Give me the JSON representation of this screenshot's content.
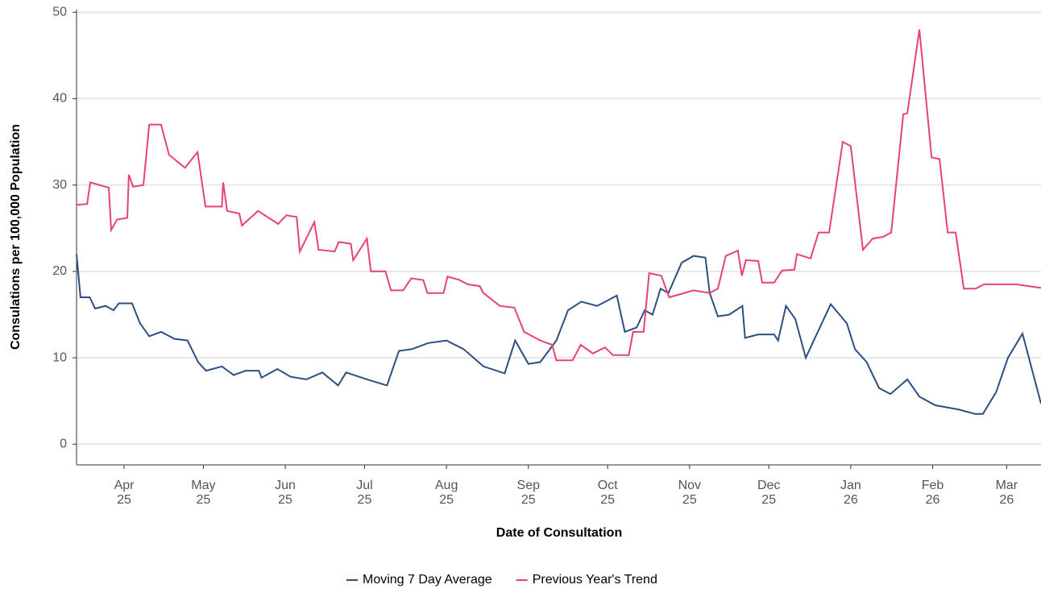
{
  "chart_data": {
    "type": "line",
    "y_label": "Consulations per 100,000 Population",
    "x_label": "Date of Consultation",
    "xlim": [
      -18,
      347
    ],
    "xticks": [
      {
        "value": 0,
        "label": "Apr\n25"
      },
      {
        "value": 30,
        "label": "May\n25"
      },
      {
        "value": 61,
        "label": "Jun\n25"
      },
      {
        "value": 91,
        "label": "Jul\n25"
      },
      {
        "value": 122,
        "label": "Aug\n25"
      },
      {
        "value": 153,
        "label": "Sep\n25"
      },
      {
        "value": 183,
        "label": "Oct\n25"
      },
      {
        "value": 214,
        "label": "Nov\n25"
      },
      {
        "value": 244,
        "label": "Dec\n25"
      },
      {
        "value": 275,
        "label": "Jan\n26"
      },
      {
        "value": 306,
        "label": "Feb\n26"
      },
      {
        "value": 334,
        "label": "Mar\n26"
      }
    ],
    "ylim": [
      -2.4,
      50.3
    ],
    "yticks": [
      0,
      10,
      20,
      30,
      40,
      50
    ],
    "grid": true,
    "legend": "bottom",
    "series": [
      {
        "name": "Moving 7 Day Average",
        "color": "#2b4f81",
        "x": [
          -18,
          -16.5,
          -13,
          -11,
          -7,
          -4,
          -2,
          3,
          6,
          9.5,
          14,
          19,
          24,
          28,
          31,
          37,
          41.5,
          46,
          51,
          52,
          58,
          63,
          69,
          75,
          81,
          84,
          92,
          99.5,
          104,
          109,
          115,
          122,
          128.5,
          136,
          144,
          148,
          153,
          157.5,
          163.6,
          168,
          173,
          179,
          186.5,
          189.5,
          194,
          197,
          200,
          203,
          206,
          211,
          215.5,
          220,
          221.6,
          224.7,
          229,
          234,
          235,
          240,
          246,
          247.5,
          250.5,
          254,
          258,
          261,
          267.4,
          273.5,
          276.6,
          281,
          285.7,
          290,
          296.4,
          301,
          307,
          316,
          322,
          325,
          330,
          334.5,
          340,
          343.7,
          347
        ],
        "values": [
          22,
          17,
          17,
          15.7,
          16,
          15.5,
          16.3,
          16.3,
          14,
          12.5,
          13,
          12.2,
          12,
          9.5,
          8.5,
          9,
          8,
          8.5,
          8.5,
          7.7,
          8.7,
          7.8,
          7.5,
          8.3,
          6.8,
          8.3,
          7.5,
          6.8,
          10.8,
          11,
          11.7,
          12,
          11,
          9,
          8.2,
          12,
          9.3,
          9.5,
          12,
          15.5,
          16.5,
          16,
          17.2,
          13,
          13.5,
          15.5,
          15,
          18,
          17.5,
          21,
          21.8,
          21.6,
          17.5,
          14.8,
          15,
          16,
          12.3,
          12.7,
          12.7,
          12,
          16,
          14.5,
          10,
          12,
          16.2,
          14,
          11,
          9.5,
          6.5,
          5.8,
          7.5,
          5.5,
          4.5,
          4,
          3.5,
          3.5,
          6,
          10,
          12.8,
          8.5,
          4.7
        ]
      },
      {
        "name": "Previous Year's Trend",
        "color": "#e8407a",
        "x": [
          -18,
          -14,
          -12.8,
          -5.8,
          -4.9,
          -2.7,
          1.2,
          1.8,
          3.4,
          7.3,
          9.5,
          14,
          17,
          23,
          27.8,
          30.8,
          37,
          37.5,
          39,
          43.6,
          44.6,
          50.7,
          58.3,
          61.4,
          65.3,
          66.5,
          72,
          73.6,
          79.7,
          81.2,
          85.8,
          86.7,
          91.9,
          93.4,
          98.9,
          101,
          105.6,
          108.7,
          113.2,
          114.8,
          120.9,
          122.4,
          127,
          130,
          134.6,
          136,
          142.2,
          147.7,
          151.4,
          157.5,
          162,
          163.6,
          169.7,
          172.8,
          177.4,
          182,
          185,
          191,
          192.6,
          196.6,
          198.7,
          203.3,
          206.3,
          215.5,
          221.6,
          224.7,
          227.7,
          232.3,
          233.8,
          235.3,
          240,
          241.5,
          246,
          249,
          253.7,
          254.6,
          259.8,
          262.8,
          266.8,
          272,
          275,
          279.6,
          283.3,
          287.2,
          290.3,
          294.9,
          296.4,
          301,
          305.6,
          308.6,
          311.7,
          314.7,
          317.8,
          322.3,
          325.4,
          337.6,
          342.2,
          347
        ],
        "values": [
          27.7,
          27.8,
          30.3,
          29.7,
          24.8,
          26,
          26.2,
          31.2,
          29.8,
          30,
          37,
          37,
          33.5,
          32,
          33.8,
          27.5,
          27.5,
          30.3,
          27,
          26.7,
          25.3,
          27,
          25.5,
          26.5,
          26.3,
          22.3,
          25.7,
          22.5,
          22.3,
          23.4,
          23.2,
          21.3,
          23.8,
          20,
          20,
          17.8,
          17.8,
          19.2,
          19,
          17.5,
          17.5,
          19.4,
          19,
          18.5,
          18.3,
          17.5,
          16,
          15.8,
          13,
          12,
          11.5,
          9.7,
          9.7,
          11.5,
          10.5,
          11.2,
          10.3,
          10.3,
          13,
          13,
          19.8,
          19.5,
          17,
          17.8,
          17.5,
          18,
          21.8,
          22.4,
          19.5,
          21.3,
          21.2,
          18.7,
          18.7,
          20.1,
          20.2,
          22,
          21.5,
          24.5,
          24.5,
          35,
          34.5,
          22.5,
          23.8,
          24,
          24.5,
          38.2,
          38.3,
          48,
          33.2,
          33,
          24.5,
          24.5,
          18,
          18,
          18.5,
          18.5,
          18.3,
          18.1
        ]
      }
    ]
  }
}
